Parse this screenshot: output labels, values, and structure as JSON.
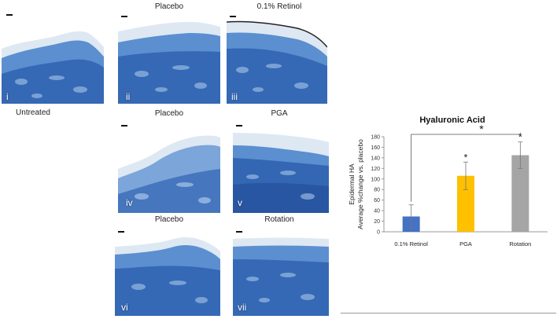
{
  "panels": [
    {
      "numeral": "i",
      "label": "Untreated"
    },
    {
      "numeral": "ii",
      "label": "Placebo"
    },
    {
      "numeral": "iii",
      "label": "0.1% Retinol"
    },
    {
      "numeral": "iv",
      "label": "Placebo"
    },
    {
      "numeral": "v",
      "label": "PGA"
    },
    {
      "numeral": "vi",
      "label": "Placebo"
    },
    {
      "numeral": "vii",
      "label": "Rotation"
    }
  ],
  "colors": {
    "tissue_dark": "#2f63b0",
    "tissue_mid": "#5b8fd0",
    "tissue_light": "#a8c7ea",
    "stratum": "#dde8f3"
  },
  "chart_data": {
    "type": "bar",
    "title": "Hyaluronic Acid",
    "ylabel_line1": "Epidermal HA",
    "ylabel_line2": "Average %change vs. placebo",
    "xlabel": "",
    "categories": [
      "0.1% Retinol",
      "PGA",
      "Rotation"
    ],
    "values": [
      29,
      106,
      145
    ],
    "errors": [
      22,
      26,
      25
    ],
    "colors": [
      "#4472c4",
      "#ffc000",
      "#a5a5a5"
    ],
    "significance_marks": [
      "",
      "*",
      "*"
    ],
    "comparison": {
      "from": "0.1% Retinol",
      "to": "Rotation",
      "mark": "*"
    },
    "ylim": [
      0,
      180
    ],
    "yticks": [
      0,
      20,
      40,
      60,
      80,
      100,
      120,
      140,
      160,
      180
    ],
    "grid": false
  }
}
